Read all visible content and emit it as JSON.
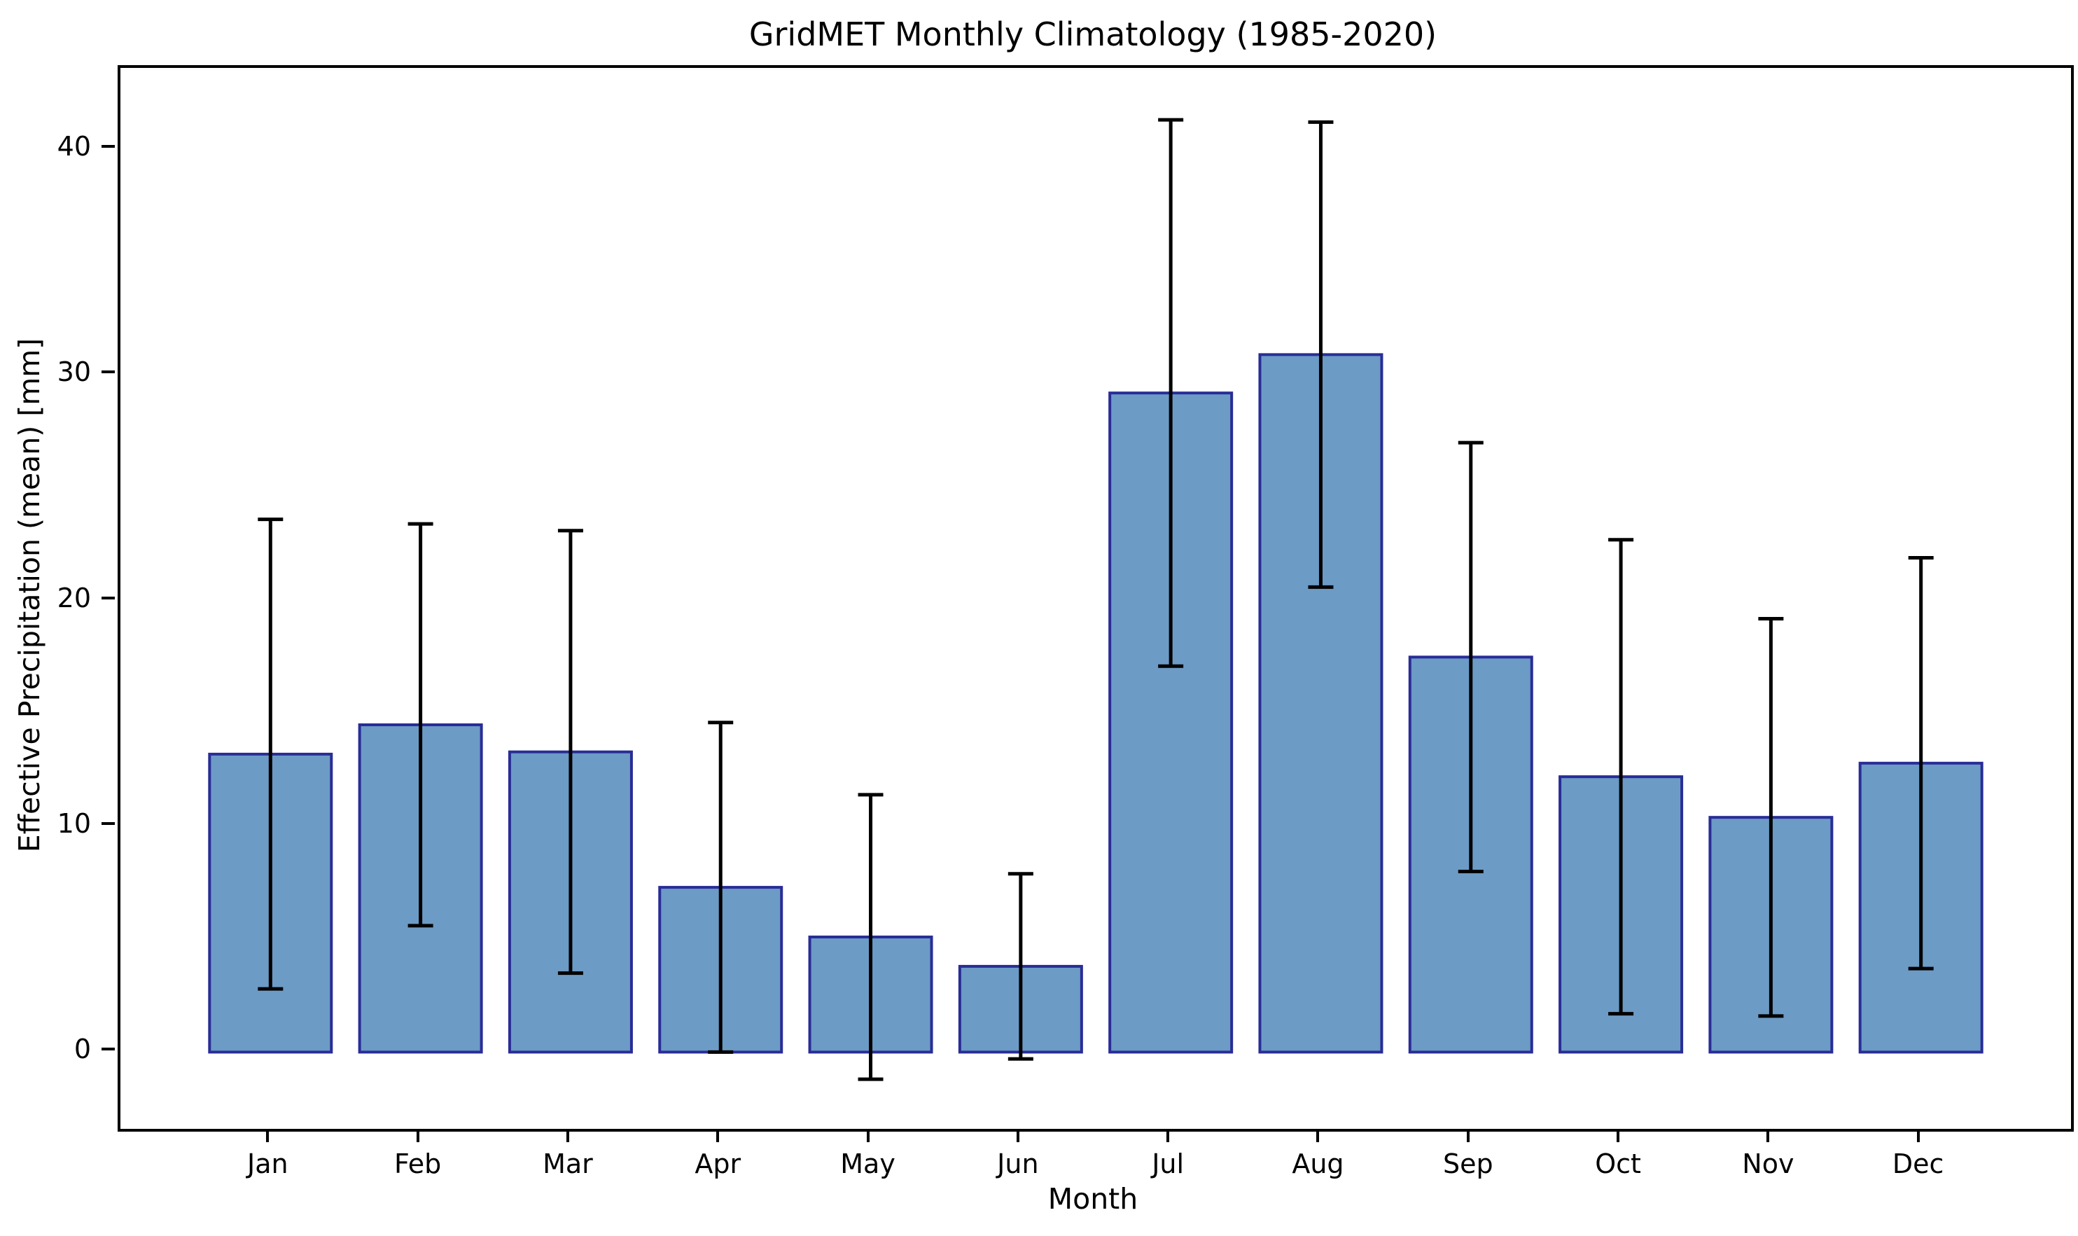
{
  "chart_data": {
    "type": "bar",
    "title": "GridMET Monthly Climatology (1985-2020)",
    "xlabel": "Month",
    "ylabel": "Effective Precipitation (mean) [mm]",
    "categories": [
      "Jan",
      "Feb",
      "Mar",
      "Apr",
      "May",
      "Jun",
      "Jul",
      "Aug",
      "Sep",
      "Oct",
      "Nov",
      "Dec"
    ],
    "values": [
      13.2,
      14.5,
      13.3,
      7.3,
      5.1,
      3.8,
      29.2,
      30.9,
      17.5,
      12.2,
      10.4,
      12.8
    ],
    "yerr": [
      10.4,
      8.9,
      9.8,
      7.3,
      6.3,
      4.1,
      12.1,
      10.3,
      9.5,
      10.5,
      8.8,
      9.1
    ],
    "error_low": [
      2.8,
      5.6,
      3.5,
      0.0,
      -1.2,
      -0.3,
      17.1,
      20.6,
      8.0,
      1.7,
      1.6,
      3.7
    ],
    "error_high": [
      23.6,
      23.4,
      23.1,
      14.6,
      11.4,
      7.9,
      41.3,
      41.2,
      27.0,
      22.7,
      19.2,
      21.9
    ],
    "yticks": [
      0,
      10,
      20,
      30,
      40
    ],
    "ylim": [
      -3.4,
      43.6
    ],
    "grid": false,
    "legend": null,
    "bar_color": "#6c9bc5",
    "bar_edge_color": "#292d96",
    "error_color": "#000000",
    "background_color": "#ffffff"
  }
}
